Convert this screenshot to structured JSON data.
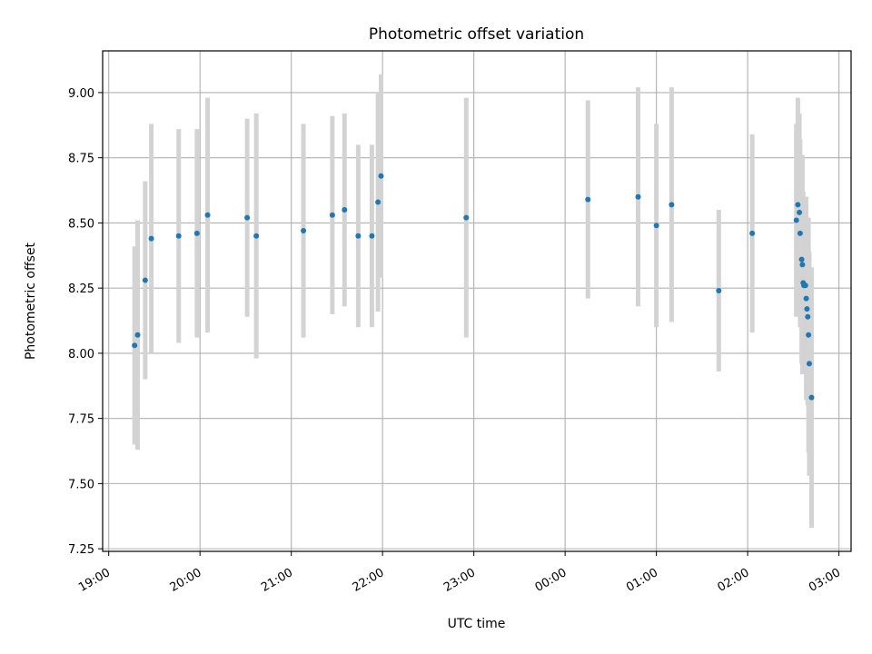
{
  "chart_data": {
    "type": "scatter",
    "title": "Photometric offset variation",
    "xlabel": "UTC time",
    "ylabel": "Photometric offset",
    "x_unit": "UTC date-time",
    "xlim": [
      "2024-01-01T18:56",
      "2024-01-02T03:08"
    ],
    "ylim": [
      7.24,
      9.16
    ],
    "x_ticks": [
      {
        "t": "2024-01-01T19:00",
        "label": "19:00"
      },
      {
        "t": "2024-01-01T20:00",
        "label": "20:00"
      },
      {
        "t": "2024-01-01T21:00",
        "label": "21:00"
      },
      {
        "t": "2024-01-01T22:00",
        "label": "22:00"
      },
      {
        "t": "2024-01-01T23:00",
        "label": "23:00"
      },
      {
        "t": "2024-01-02T00:00",
        "label": "00:00"
      },
      {
        "t": "2024-01-02T01:00",
        "label": "01:00"
      },
      {
        "t": "2024-01-02T02:00",
        "label": "02:00"
      },
      {
        "t": "2024-01-02T03:00",
        "label": "03:00"
      }
    ],
    "y_ticks": [
      {
        "v": 7.25,
        "label": "7.25"
      },
      {
        "v": 7.5,
        "label": "7.50"
      },
      {
        "v": 7.75,
        "label": "7.75"
      },
      {
        "v": 8.0,
        "label": "8.00"
      },
      {
        "v": 8.25,
        "label": "8.25"
      },
      {
        "v": 8.5,
        "label": "8.50"
      },
      {
        "v": 8.75,
        "label": "8.75"
      },
      {
        "v": 9.0,
        "label": "9.00"
      }
    ],
    "grid": true,
    "colors": {
      "point": "#1f77b4",
      "errorbar": "#d3d3d3",
      "grid": "#b0b0b0"
    },
    "points": [
      {
        "t": "2024-01-01T19:17",
        "y": 8.03,
        "err": 0.38
      },
      {
        "t": "2024-01-01T19:19",
        "y": 8.07,
        "err": 0.44
      },
      {
        "t": "2024-01-01T19:24",
        "y": 8.28,
        "err": 0.38
      },
      {
        "t": "2024-01-01T19:28",
        "y": 8.44,
        "err": 0.44
      },
      {
        "t": "2024-01-01T19:46",
        "y": 8.45,
        "err": 0.41
      },
      {
        "t": "2024-01-01T19:58",
        "y": 8.46,
        "err": 0.4
      },
      {
        "t": "2024-01-01T20:05",
        "y": 8.53,
        "err": 0.45
      },
      {
        "t": "2024-01-01T20:31",
        "y": 8.52,
        "err": 0.38
      },
      {
        "t": "2024-01-01T20:37",
        "y": 8.45,
        "err": 0.47
      },
      {
        "t": "2024-01-01T21:08",
        "y": 8.47,
        "err": 0.41
      },
      {
        "t": "2024-01-01T21:27",
        "y": 8.53,
        "err": 0.38
      },
      {
        "t": "2024-01-01T21:35",
        "y": 8.55,
        "err": 0.37
      },
      {
        "t": "2024-01-01T21:44",
        "y": 8.45,
        "err": 0.35
      },
      {
        "t": "2024-01-01T21:53",
        "y": 8.45,
        "err": 0.35
      },
      {
        "t": "2024-01-01T21:57",
        "y": 8.58,
        "err": 0.42
      },
      {
        "t": "2024-01-01T21:59",
        "y": 8.68,
        "err": 0.39
      },
      {
        "t": "2024-01-01T22:55",
        "y": 8.52,
        "err": 0.46
      },
      {
        "t": "2024-01-02T00:15",
        "y": 8.59,
        "err": 0.38
      },
      {
        "t": "2024-01-02T00:48",
        "y": 8.6,
        "err": 0.42
      },
      {
        "t": "2024-01-02T01:00",
        "y": 8.49,
        "err": 0.39
      },
      {
        "t": "2024-01-02T01:10",
        "y": 8.57,
        "err": 0.45
      },
      {
        "t": "2024-01-02T01:41",
        "y": 8.24,
        "err": 0.31
      },
      {
        "t": "2024-01-02T02:03",
        "y": 8.46,
        "err": 0.38
      },
      {
        "t": "2024-01-02T02:32",
        "y": 8.51,
        "err": 0.37
      },
      {
        "t": "2024-01-02T02:33",
        "y": 8.57,
        "err": 0.41
      },
      {
        "t": "2024-01-02T02:34",
        "y": 8.54,
        "err": 0.38
      },
      {
        "t": "2024-01-02T02:34.5",
        "y": 8.46,
        "err": 0.36
      },
      {
        "t": "2024-01-02T02:35.5",
        "y": 8.36,
        "err": 0.4
      },
      {
        "t": "2024-01-02T02:36",
        "y": 8.34,
        "err": 0.42
      },
      {
        "t": "2024-01-02T02:36.5",
        "y": 8.27,
        "err": 0.35
      },
      {
        "t": "2024-01-02T02:37",
        "y": 8.26,
        "err": 0.34
      },
      {
        "t": "2024-01-02T02:38",
        "y": 8.26,
        "err": 0.34
      },
      {
        "t": "2024-01-02T02:38.5",
        "y": 8.21,
        "err": 0.39
      },
      {
        "t": "2024-01-02T02:39",
        "y": 8.17,
        "err": 0.35
      },
      {
        "t": "2024-01-02T02:39.5",
        "y": 8.14,
        "err": 0.34
      },
      {
        "t": "2024-01-02T02:40",
        "y": 8.07,
        "err": 0.45
      },
      {
        "t": "2024-01-02T02:40.5",
        "y": 7.96,
        "err": 0.43
      },
      {
        "t": "2024-01-02T02:42",
        "y": 7.83,
        "err": 0.5
      }
    ]
  }
}
